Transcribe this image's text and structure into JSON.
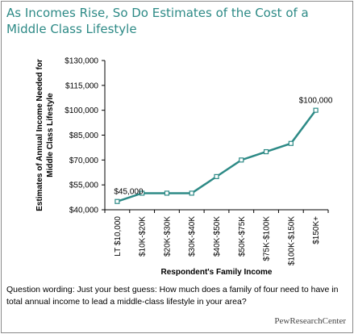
{
  "title": "As Incomes Rise, So Do Estimates of the Cost of a Middle Class Lifestyle",
  "chart_data": {
    "type": "line",
    "xlabel": "Respondent's Family Income",
    "ylabel": "Estimates of Annual Income Needed for Middle Class Lifestyle",
    "categories": [
      "LT $10,000",
      "$10K-$20K",
      "$20K-$30K",
      "$30K-$40K",
      "$40K-$50K",
      "$50K-$75K",
      "$75K-$100K",
      "$100K-$150K",
      "$150K+"
    ],
    "values": [
      45000,
      50000,
      50000,
      50000,
      60000,
      70000,
      75000,
      80000,
      100000
    ],
    "ylim": [
      40000,
      130000
    ],
    "yticks": [
      40000,
      55000,
      70000,
      85000,
      100000,
      115000,
      130000
    ],
    "ytick_labels": [
      "$40,000",
      "$55,000",
      "$70,000",
      "$85,000",
      "$100,000",
      "$115,000",
      "$130,000"
    ],
    "data_labels": [
      {
        "index": 0,
        "text": "$45,000"
      },
      {
        "index": 8,
        "text": "$100,000"
      }
    ],
    "line_color": "#2d8a86",
    "marker_color": "#ffffff",
    "grid": false
  },
  "note": "Question wording: Just your best guess: How much does a family of four need to have in total annual income to lead a middle-class lifestyle in your area?",
  "brand": "PewResearchCenter"
}
